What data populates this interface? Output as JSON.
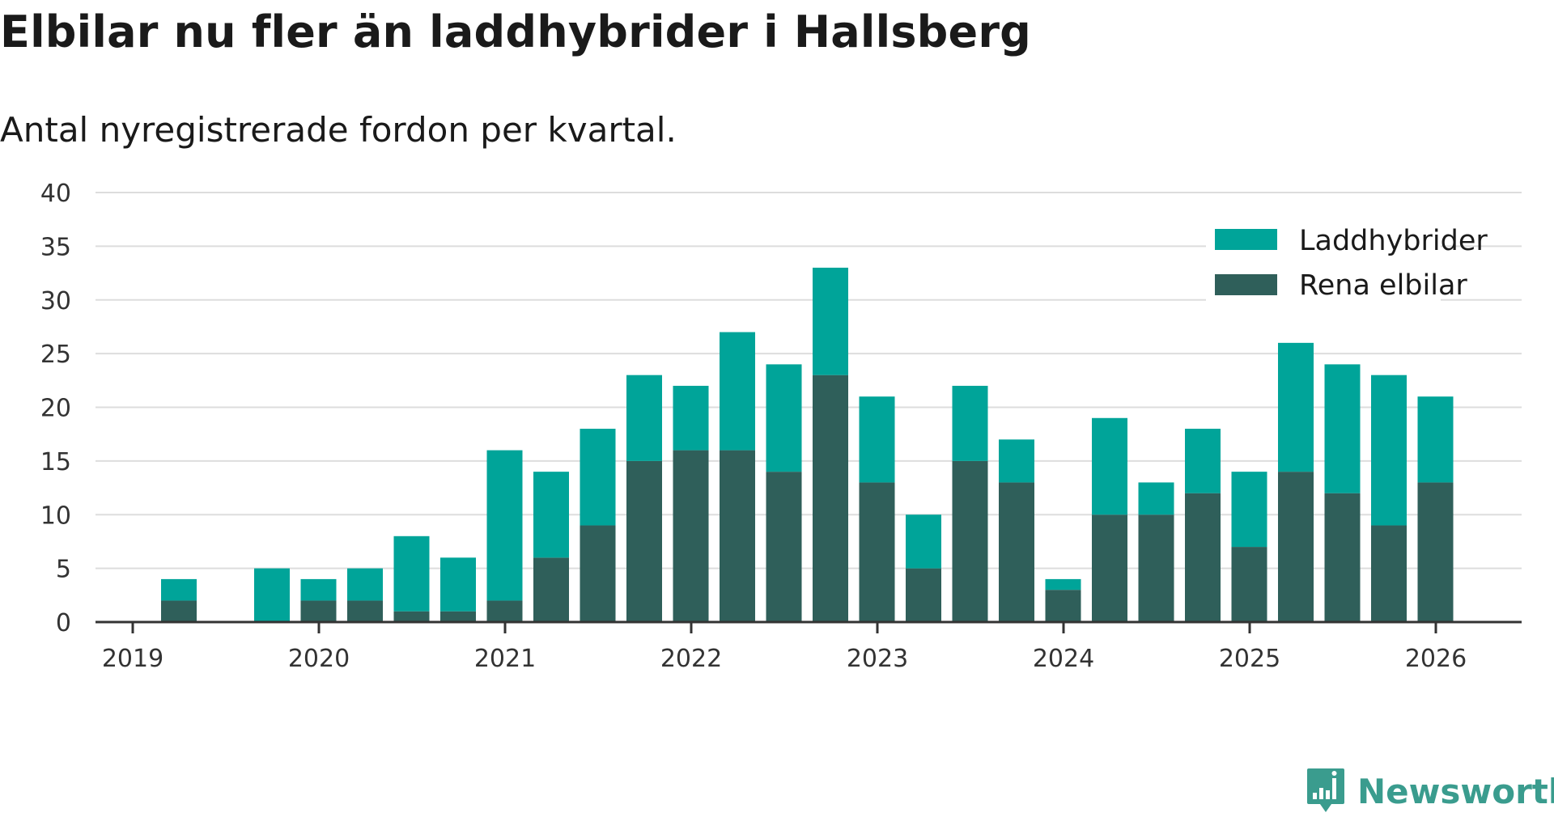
{
  "title": "Elbilar nu fler än laddhybrider i Hallsberg",
  "subtitle": "Antal nyregistrerade fordon per kvartal.",
  "colors": {
    "phev": "#00a499",
    "bev": "#2f5f5a",
    "grid": "#dddddd",
    "axis": "#333333"
  },
  "chart_data": {
    "type": "bar",
    "stacked": true,
    "title": "Elbilar nu fler än laddhybrider i Hallsberg",
    "subtitle": "Antal nyregistrerade fordon per kvartal.",
    "xlabel": "",
    "ylabel": "",
    "ylim": [
      0,
      40
    ],
    "yticks": [
      "0",
      "5",
      "10",
      "15",
      "20",
      "25",
      "30",
      "35",
      "40"
    ],
    "xticks": [
      "2019",
      "2020",
      "2021",
      "2022",
      "2023",
      "2024",
      "2025",
      "2026"
    ],
    "grid": true,
    "legend_position": "top-right",
    "categories": [
      "2019 Q1",
      "2019 Q2",
      "2019 Q3",
      "2019 Q4",
      "2020 Q1",
      "2020 Q2",
      "2020 Q3",
      "2020 Q4",
      "2021 Q1",
      "2021 Q2",
      "2021 Q3",
      "2021 Q4",
      "2022 Q1",
      "2022 Q2",
      "2022 Q3",
      "2022 Q4",
      "2023 Q1",
      "2023 Q2",
      "2023 Q3",
      "2023 Q4",
      "2024 Q1",
      "2024 Q2",
      "2024 Q3",
      "2024 Q4",
      "2025 Q1",
      "2025 Q2",
      "2025 Q3",
      "2025 Q4"
    ],
    "series": [
      {
        "name": "Rena elbilar",
        "values": [
          2,
          0,
          0,
          2,
          2,
          1,
          1,
          2,
          6,
          9,
          15,
          16,
          16,
          14,
          23,
          13,
          5,
          15,
          13,
          3,
          10,
          10,
          12,
          7,
          14,
          12,
          9,
          13
        ]
      },
      {
        "name": "Laddhybrider",
        "values": [
          2,
          0,
          5,
          2,
          3,
          7,
          5,
          14,
          8,
          9,
          8,
          6,
          11,
          10,
          10,
          8,
          5,
          7,
          4,
          1,
          9,
          3,
          6,
          7,
          12,
          12,
          14,
          8
        ]
      }
    ]
  },
  "legend": {
    "phev_label": "Laddhybrider",
    "bev_label": "Rena elbilar"
  },
  "logo": {
    "text": "Newsworthy"
  }
}
